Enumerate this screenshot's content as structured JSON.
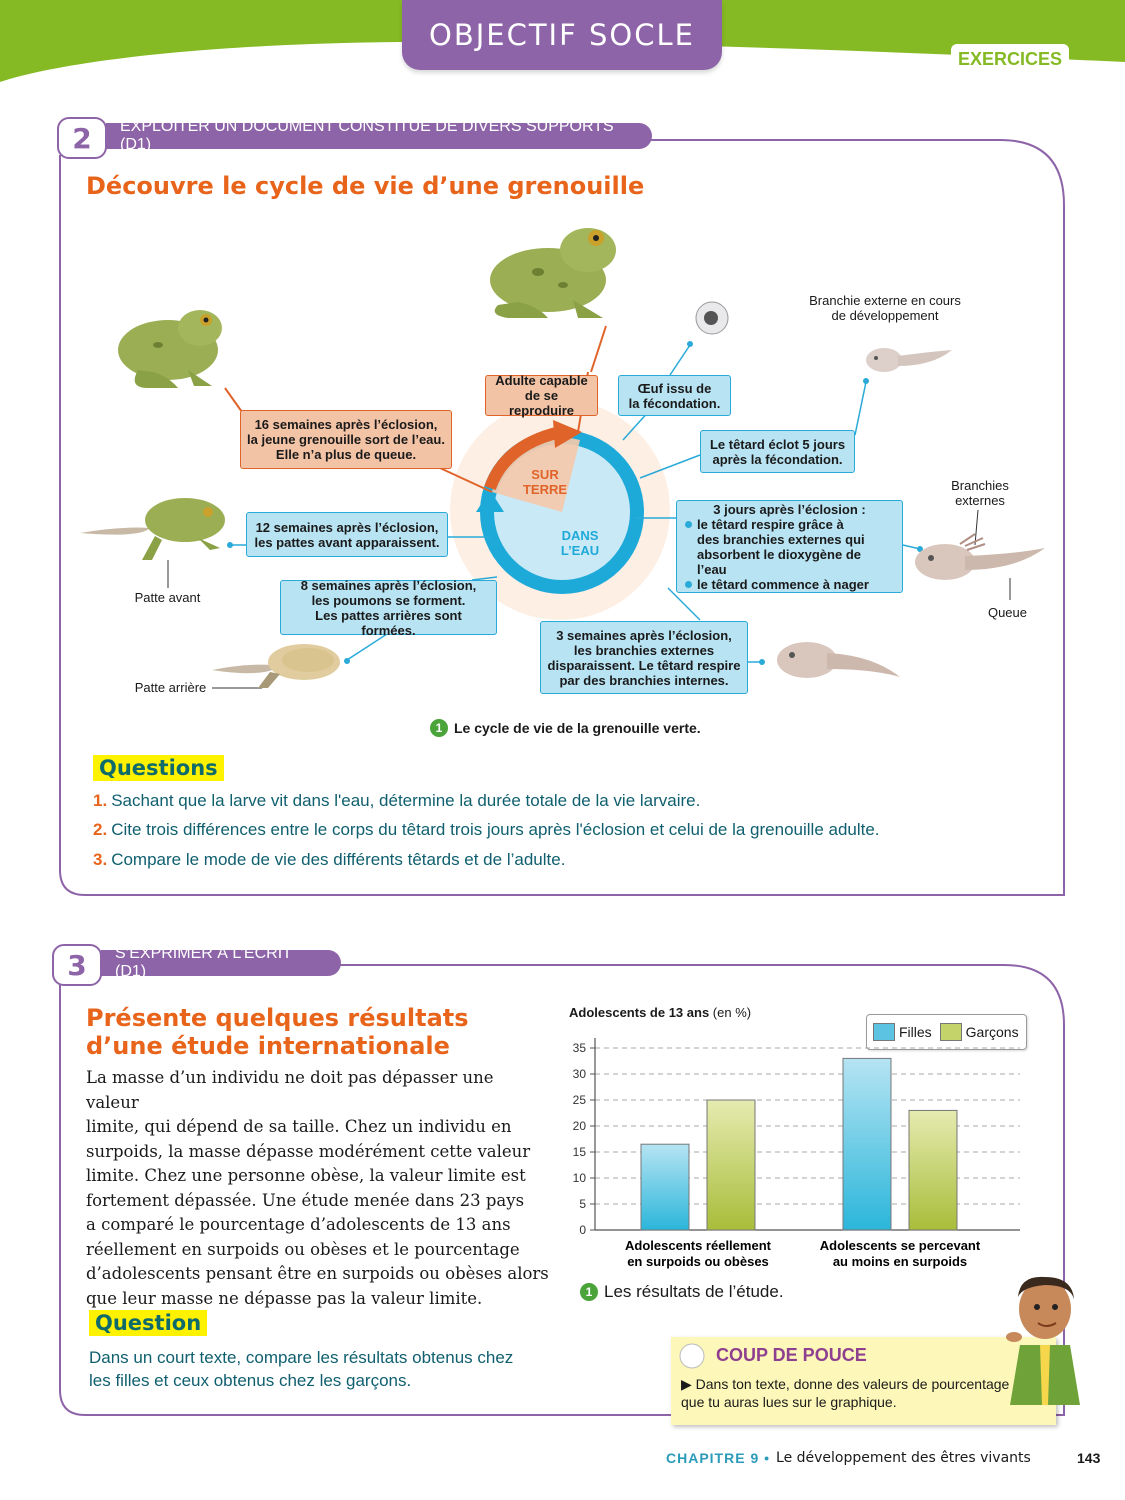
{
  "header": {
    "objectif": "OBJECTIF SOCLE",
    "exercices": "EXERCICES"
  },
  "colors": {
    "accent_purple": "#8e64a8",
    "accent_green": "#86ba24",
    "accent_orange": "#e8641b",
    "box_blue": "#b8e3f3",
    "box_orange": "#f3c3a6"
  },
  "ex2": {
    "number": "2",
    "skill": "EXPLOITER UN DOCUMENT CONSTITUÉ DE DIVERS SUPPORTS (D1)",
    "title": "Découvre le cycle de vie d’une grenouille",
    "diagram": {
      "center_land": [
        "SUR",
        "TERRE"
      ],
      "center_water": [
        "DANS",
        "L’EAU"
      ],
      "box_adult": [
        "Adulte capable",
        "de se reproduire"
      ],
      "box_egg": [
        "Œuf issu de",
        "la fécondation."
      ],
      "box_hatch": [
        "Le têtard éclot 5 jours",
        "après la fécondation."
      ],
      "box_3days_title": "3 jours après l’éclosion :",
      "box_3days_b1": [
        "le têtard respire grâce à",
        "des branchies externes qui",
        "absorbent le dioxygène de l’eau"
      ],
      "box_3days_b2": "le têtard commence à nager",
      "box_3weeks": [
        "3 semaines après l’éclosion,",
        "les branchies externes",
        "disparaissent. Le têtard respire",
        "par des branchies internes."
      ],
      "box_8weeks": [
        "8 semaines après l’éclosion,",
        "les poumons se forment.",
        "Les pattes arrières sont formées."
      ],
      "box_12weeks": [
        "12 semaines après l’éclosion,",
        "les pattes avant apparaissent."
      ],
      "box_16weeks": [
        "16 semaines après l’éclosion,",
        "la jeune grenouille sort de l’eau.",
        "Elle n’a plus de queue."
      ],
      "label_branchie_dev": [
        "Branchie externe en cours",
        "de développement"
      ],
      "label_branchies": [
        "Branchies",
        "externes"
      ],
      "label_queue": "Queue",
      "label_patte_avant": "Patte avant",
      "label_patte_arriere": "Patte arrière"
    },
    "legend_num": "1",
    "legend_text": "Le cycle de vie de la grenouille verte.",
    "questions_label": "Questions",
    "questions": [
      {
        "n": "1.",
        "text": "Sachant que la larve vit dans l'eau, détermine la durée totale de la vie larvaire."
      },
      {
        "n": "2.",
        "text": "Cite trois différences entre le corps du têtard trois jours après l'éclosion et celui de la grenouille adulte."
      },
      {
        "n": "3.",
        "text": "Compare le mode de vie des différents têtards et de l’adulte."
      }
    ]
  },
  "ex3": {
    "number": "3",
    "skill": "S’EXPRIMER À L’ÉCRIT (D1)",
    "title_l1": "Présente quelques résultats",
    "title_l2": "d’une étude internationale",
    "paragraph": [
      "La masse d’un individu ne doit pas dépasser une valeur",
      "limite, qui dépend de sa taille. Chez un individu en",
      "surpoids, la masse dépasse modérément cette valeur",
      "limite. Chez une personne obèse, la valeur limite est",
      "fortement dépassée. Une étude menée dans 23 pays",
      "a comparé le pourcentage d’adolescents de 13 ans",
      "réellement en surpoids ou obèses et le pourcentage",
      "d’adolescents pensant être en surpoids ou obèses alors",
      "que leur masse ne dépasse pas la valeur limite."
    ],
    "question_label": "Question",
    "question_text": [
      "Dans un court texte, compare les résultats obtenus chez",
      "les filles et ceux obtenus chez les garçons."
    ],
    "legend_num": "1",
    "legend_text": "Les résultats de l’étude.",
    "tip_title": "COUP DE POUCE",
    "tip_text": [
      "▶ Dans ton texte, donne des valeurs de pourcentage",
      "que tu auras lues sur le graphique."
    ]
  },
  "chart_data": {
    "type": "bar",
    "title": "Adolescents de 13 ans",
    "ylabel_unit": "(en %)",
    "categories": [
      [
        "Adolescents réellement",
        "en surpoids ou obèses"
      ],
      [
        "Adolescents se percevant",
        "au moins en surpoids"
      ]
    ],
    "series": [
      {
        "name": "Filles",
        "color": "#5cc3e2",
        "values": [
          16.5,
          33
        ]
      },
      {
        "name": "Garçons",
        "color": "#c4d36a",
        "values": [
          25,
          23
        ]
      }
    ],
    "yticks": [
      0,
      5,
      10,
      15,
      20,
      25,
      30,
      35
    ],
    "ylim": [
      0,
      35
    ],
    "legend_position": "top-right",
    "grid": true
  },
  "footer": {
    "chapter": "CHAPITRE 9 •",
    "chapter_name": "Le développement des êtres vivants",
    "page": "143"
  }
}
